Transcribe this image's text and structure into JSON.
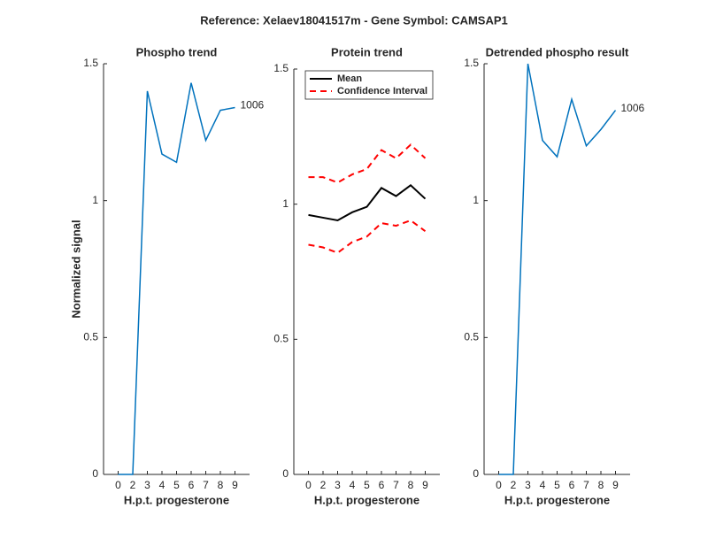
{
  "title": "Reference:  Xelaev18041517m - Gene Symbol:  CAMSAP1",
  "chart_data": [
    {
      "type": "line",
      "title": "Phospho trend",
      "x_label": "H.p.t. progesterone",
      "y_label": "Normalized signal",
      "categories": [
        "0",
        "2",
        "3",
        "4",
        "5",
        "6",
        "7",
        "8",
        "9"
      ],
      "series": [
        {
          "name": null,
          "color": "#0072bd",
          "values": [
            0,
            0,
            1.4,
            1.17,
            1.14,
            1.43,
            1.22,
            1.33,
            1.34
          ]
        }
      ],
      "annotation": "1006",
      "ylim": [
        0,
        1.5
      ],
      "yticks": [
        0,
        0.5,
        1,
        1.5
      ]
    },
    {
      "type": "band",
      "title": "Protein trend",
      "x_label": "H.p.t. progesterone",
      "categories": [
        "0",
        "2",
        "3",
        "4",
        "5",
        "6",
        "7",
        "8",
        "9"
      ],
      "series": [
        {
          "name": "Mean",
          "color": "#000000",
          "values": [
            0.96,
            0.95,
            0.94,
            0.97,
            0.99,
            1.06,
            1.03,
            1.07,
            1.02
          ]
        },
        {
          "name": "Confidence Interval",
          "color": "#ff0000",
          "upper": [
            1.1,
            1.1,
            1.08,
            1.11,
            1.13,
            1.2,
            1.17,
            1.22,
            1.17
          ],
          "lower": [
            0.85,
            0.84,
            0.82,
            0.86,
            0.88,
            0.93,
            0.92,
            0.94,
            0.9
          ]
        }
      ],
      "legend": "upper left",
      "ylim": [
        0,
        1.5
      ],
      "yticks": [
        0,
        0.5,
        1,
        1.5
      ]
    },
    {
      "type": "line",
      "title": "Detrended phospho result",
      "x_label": "H.p.t. progesterone",
      "categories": [
        "0",
        "2",
        "3",
        "4",
        "5",
        "6",
        "7",
        "8",
        "9"
      ],
      "series": [
        {
          "name": null,
          "color": "#0072bd",
          "values": [
            0,
            0,
            1.5,
            1.22,
            1.16,
            1.37,
            1.2,
            1.26,
            1.33
          ]
        }
      ],
      "annotation": "1006",
      "ylim": [
        0,
        1.5
      ],
      "yticks": [
        0,
        0.5,
        1,
        1.5
      ]
    }
  ]
}
